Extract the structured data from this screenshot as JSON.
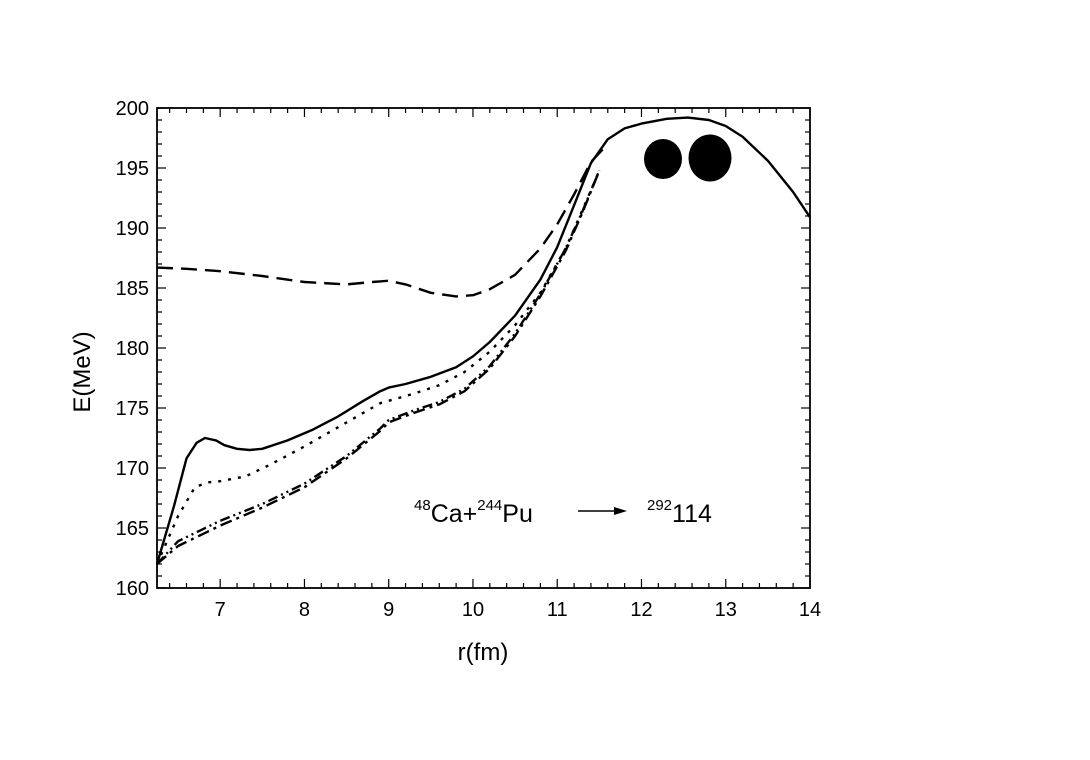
{
  "chart_data": {
    "type": "line",
    "title": "",
    "xlabel": "r(fm)",
    "ylabel": "E(MeV)",
    "xlim": [
      6.25,
      14
    ],
    "ylim": [
      160,
      200
    ],
    "xticks": [
      7,
      8,
      9,
      10,
      11,
      12,
      13,
      14
    ],
    "yticks": [
      160,
      165,
      170,
      175,
      180,
      185,
      190,
      195,
      200
    ],
    "grid": false,
    "legend": "none",
    "annotation": {
      "projectile_mass": "48",
      "projectile": "Ca+",
      "target_mass": "244",
      "target": "Pu",
      "product_mass": "292",
      "product": "114"
    },
    "series": [
      {
        "style": "solid",
        "x": [
          6.25,
          6.45,
          6.6,
          6.72,
          6.82,
          6.95,
          7.05,
          7.2,
          7.35,
          7.5,
          7.8,
          8.1,
          8.4,
          8.7,
          8.9,
          9.0,
          9.2,
          9.5,
          9.8,
          10.0,
          10.2,
          10.5,
          10.8,
          11.0,
          11.2,
          11.4,
          11.6,
          11.8,
          12.0,
          12.3,
          12.55,
          12.8,
          13.0,
          13.2,
          13.5,
          13.8,
          14.0
        ],
        "y": [
          162.0,
          166.8,
          170.8,
          172.1,
          172.5,
          172.3,
          171.9,
          171.6,
          171.5,
          171.6,
          172.3,
          173.2,
          174.3,
          175.6,
          176.4,
          176.7,
          177.0,
          177.6,
          178.4,
          179.3,
          180.5,
          182.7,
          185.7,
          188.4,
          191.9,
          195.4,
          197.4,
          198.3,
          198.7,
          199.1,
          199.2,
          199.0,
          198.5,
          197.6,
          195.6,
          193.0,
          190.9
        ]
      },
      {
        "style": "dashed",
        "x": [
          6.25,
          6.6,
          7.0,
          7.5,
          8.0,
          8.5,
          8.8,
          9.0,
          9.2,
          9.5,
          9.8,
          10.0,
          10.2,
          10.5,
          10.8,
          11.0,
          11.2,
          11.4,
          11.6
        ],
        "y": [
          186.7,
          186.6,
          186.4,
          186.0,
          185.5,
          185.3,
          185.5,
          185.6,
          185.3,
          184.6,
          184.3,
          184.4,
          184.9,
          186.1,
          188.3,
          190.3,
          192.8,
          195.5,
          197.0
        ]
      },
      {
        "style": "dotted",
        "x": [
          6.25,
          6.5,
          6.7,
          6.85,
          7.0,
          7.3,
          7.6,
          8.0,
          8.5,
          8.9,
          9.0,
          9.3,
          9.6,
          9.9,
          10.2,
          10.5,
          10.8,
          11.1,
          11.3,
          11.5
        ],
        "y": [
          162.0,
          166.0,
          168.4,
          168.8,
          168.9,
          169.3,
          170.3,
          171.8,
          173.8,
          175.4,
          175.6,
          176.2,
          176.9,
          178.0,
          179.7,
          181.9,
          184.6,
          188.3,
          191.5,
          194.8
        ]
      },
      {
        "style": "dash-dot",
        "x": [
          6.25,
          6.5,
          7.0,
          7.5,
          8.0,
          8.5,
          8.9,
          9.0,
          9.3,
          9.6,
          9.9,
          10.2,
          10.5,
          10.8,
          11.1,
          11.3,
          11.5
        ],
        "y": [
          162.0,
          163.5,
          165.2,
          166.7,
          168.4,
          170.8,
          173.1,
          173.8,
          174.6,
          175.3,
          176.4,
          178.3,
          181.0,
          184.3,
          188.1,
          191.3,
          194.8
        ]
      },
      {
        "style": "dash-dot-dot",
        "x": [
          6.25,
          6.5,
          7.0,
          7.5,
          8.0,
          8.5,
          8.9,
          9.0,
          9.3,
          9.6,
          9.9,
          10.2,
          10.5,
          10.8,
          11.1,
          11.3,
          11.5
        ],
        "y": [
          162.0,
          163.9,
          165.6,
          167.0,
          168.7,
          171.0,
          173.3,
          174.0,
          174.8,
          175.5,
          176.6,
          178.5,
          181.2,
          184.5,
          188.3,
          191.4,
          194.8
        ]
      }
    ],
    "dinuclear_system_icon": "two-filled-nuclei-icon"
  }
}
